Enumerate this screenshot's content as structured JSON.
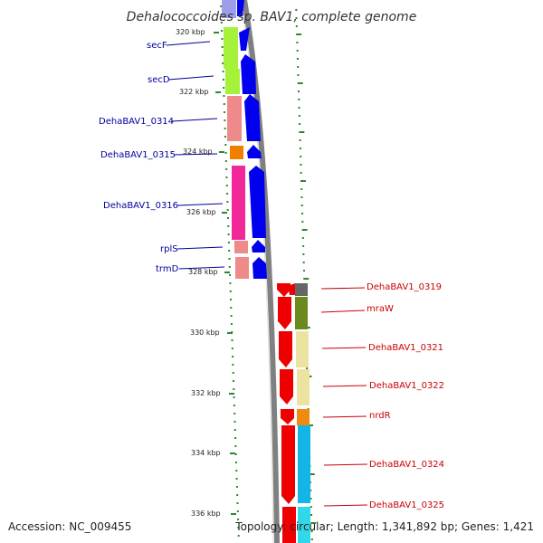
{
  "title": "Dehalococcoides sp. BAV1, complete genome",
  "footer": {
    "accession": "Accession: NC_009455",
    "topology": "Topology: circular; Length: 1,341,892 bp; Genes: 1,421"
  },
  "ticks": [
    {
      "label": "320 kbp"
    },
    {
      "label": "322 kbp"
    },
    {
      "label": "324 kbp"
    },
    {
      "label": "326 kbp"
    },
    {
      "label": "328 kbp"
    },
    {
      "label": "330 kbp"
    },
    {
      "label": "332 kbp"
    },
    {
      "label": "334 kbp"
    },
    {
      "label": "336 kbp"
    }
  ],
  "genes_forward": [
    {
      "name": "secF",
      "color": "#a6f23a"
    },
    {
      "name": "secD",
      "color": "#a6f23a"
    },
    {
      "name": "DehaBAV1_0314",
      "color": "#ef8a8a"
    },
    {
      "name": "DehaBAV1_0315",
      "color": "#f07f00"
    },
    {
      "name": "DehaBAV1_0316",
      "color": "#f0289a"
    },
    {
      "name": "rplS",
      "color": "#ef8a8a"
    },
    {
      "name": "trmD",
      "color": "#ef8a8a"
    }
  ],
  "genes_reverse": [
    {
      "name": "DehaBAV1_0319",
      "color": "#666666"
    },
    {
      "name": "mraW",
      "color": "#6b8a1e"
    },
    {
      "name": "DehaBAV1_0321",
      "color": "#ede3a0"
    },
    {
      "name": "DehaBAV1_0322",
      "color": "#ede3a0"
    },
    {
      "name": "nrdR",
      "color": "#f08a10"
    },
    {
      "name": "DehaBAV1_0324",
      "color": "#13b4e6"
    },
    {
      "name": "DehaBAV1_0325",
      "color": "#13b4e6"
    }
  ],
  "colors": {
    "forward_label": "#000099",
    "reverse_label": "#cc0000",
    "forward_cds": "#0000ee",
    "reverse_cds": "#ee0000",
    "backbone": "#808080",
    "tick": "#2a8a2a"
  }
}
